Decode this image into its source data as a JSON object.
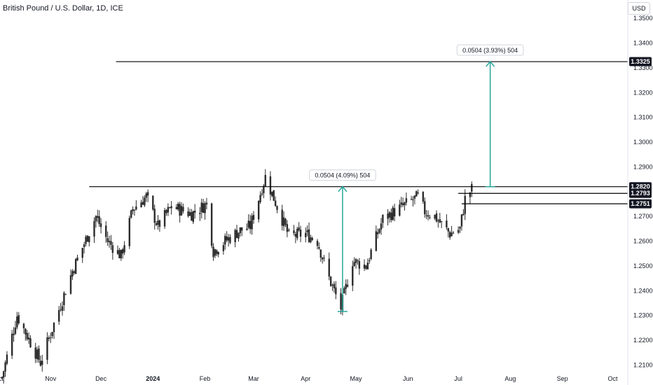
{
  "header": {
    "symbol_title": "British Pound / U.S. Dollar, 1D, ICE",
    "currency_label": "USD"
  },
  "colors": {
    "candle": "#2b2b2b",
    "measure_arrow": "#26a69a",
    "level_line": "#000000",
    "price_tag_bg": "#131722"
  },
  "chart_data": {
    "type": "candlestick",
    "title": "British Pound / U.S. Dollar, 1D, ICE",
    "x_axis": {
      "labels": [
        "Oct",
        "Nov",
        "Dec",
        "2024",
        "Feb",
        "Mar",
        "Apr",
        "May",
        "Jun",
        "Jul",
        "Aug",
        "Sep",
        "Oct"
      ],
      "label_dates": [
        "2023-10-01",
        "2023-11-01",
        "2023-12-01",
        "2024-01-01",
        "2024-02-01",
        "2024-03-01",
        "2024-04-01",
        "2024-05-01",
        "2024-06-01",
        "2024-07-01",
        "2024-08-01",
        "2024-09-01",
        "2024-10-01"
      ],
      "range": [
        "2023-10-01",
        "2024-10-10"
      ]
    },
    "y_axis": {
      "ticks": [
        "1.3500",
        "1.3400",
        "1.3300",
        "1.3200",
        "1.3100",
        "1.3000",
        "1.2900",
        "1.2700",
        "1.2600",
        "1.2500",
        "1.2400",
        "1.2300",
        "1.2200",
        "1.2100"
      ],
      "range": [
        1.207,
        1.354
      ],
      "grid": false
    },
    "anchors": [
      {
        "date": "2023-10-03",
        "price": 1.205
      },
      {
        "date": "2023-10-12",
        "price": 1.23
      },
      {
        "date": "2023-10-26",
        "price": 1.211
      },
      {
        "date": "2023-11-14",
        "price": 1.248
      },
      {
        "date": "2023-11-28",
        "price": 1.27
      },
      {
        "date": "2023-12-05",
        "price": 1.26
      },
      {
        "date": "2023-12-13",
        "price": 1.254
      },
      {
        "date": "2023-12-20",
        "price": 1.273
      },
      {
        "date": "2023-12-28",
        "price": 1.278
      },
      {
        "date": "2024-01-04",
        "price": 1.266
      },
      {
        "date": "2024-01-12",
        "price": 1.274
      },
      {
        "date": "2024-01-24",
        "price": 1.271
      },
      {
        "date": "2024-02-02",
        "price": 1.275
      },
      {
        "date": "2024-02-06",
        "price": 1.256
      },
      {
        "date": "2024-02-13",
        "price": 1.26
      },
      {
        "date": "2024-02-21",
        "price": 1.264
      },
      {
        "date": "2024-02-28",
        "price": 1.266
      },
      {
        "date": "2024-03-08",
        "price": 1.286
      },
      {
        "date": "2024-03-15",
        "price": 1.274
      },
      {
        "date": "2024-03-22",
        "price": 1.262
      },
      {
        "date": "2024-04-01",
        "price": 1.263
      },
      {
        "date": "2024-04-08",
        "price": 1.26
      },
      {
        "date": "2024-04-15",
        "price": 1.245
      },
      {
        "date": "2024-04-22",
        "price": 1.233
      },
      {
        "date": "2024-04-29",
        "price": 1.252
      },
      {
        "date": "2024-05-07",
        "price": 1.25
      },
      {
        "date": "2024-05-17",
        "price": 1.269
      },
      {
        "date": "2024-05-31",
        "price": 1.275
      },
      {
        "date": "2024-06-07",
        "price": 1.278
      },
      {
        "date": "2024-06-11",
        "price": 1.272
      },
      {
        "date": "2024-06-17",
        "price": 1.27
      },
      {
        "date": "2024-06-26",
        "price": 1.263
      },
      {
        "date": "2024-07-02",
        "price": 1.265
      },
      {
        "date": "2024-07-05",
        "price": 1.277
      },
      {
        "date": "2024-07-09",
        "price": 1.281
      }
    ],
    "levels": [
      {
        "price": 1.3325,
        "label": "1.3325",
        "from_date": "2023-12-10"
      },
      {
        "price": 1.282,
        "label": "1.2820",
        "from_date": "2023-11-24"
      },
      {
        "price": 1.2793,
        "label": "1.2793",
        "from_date": "2024-07-01"
      },
      {
        "price": 1.2751,
        "label": "1.2751",
        "from_date": "2024-07-03"
      }
    ],
    "measurements": [
      {
        "label": "0.0504 (4.09%) 504",
        "date": "2024-04-23",
        "from": 1.2316,
        "to": 1.282
      },
      {
        "label": "0.0504 (3.93%) 504",
        "date": "2024-07-20",
        "from": 1.282,
        "to": 1.3325
      }
    ]
  }
}
